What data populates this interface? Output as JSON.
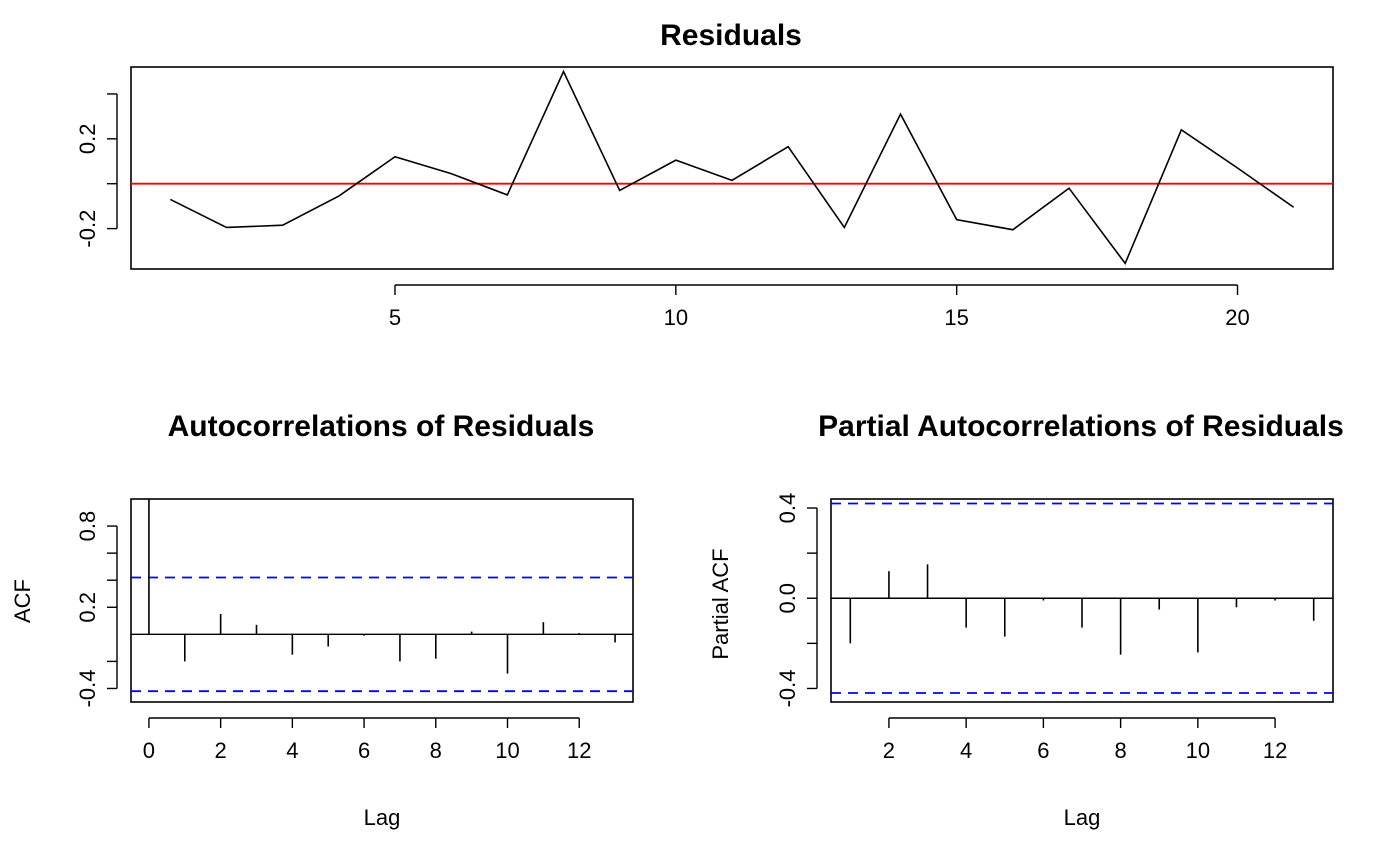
{
  "chart_data": [
    {
      "type": "line",
      "title": "Residuals",
      "xlabel": "",
      "ylabel": "",
      "x": [
        1,
        2,
        3,
        4,
        5,
        6,
        7,
        8,
        9,
        10,
        11,
        12,
        13,
        14,
        15,
        16,
        17,
        18,
        19,
        20,
        21
      ],
      "values": [
        -0.07,
        -0.195,
        -0.185,
        -0.055,
        0.12,
        0.045,
        -0.05,
        0.5,
        -0.03,
        0.105,
        0.015,
        0.165,
        -0.195,
        0.31,
        -0.16,
        -0.205,
        -0.02,
        -0.355,
        0.24,
        0.07,
        -0.105
      ],
      "ylim": [
        -0.38,
        0.52
      ],
      "xlim": [
        0.3,
        21.7
      ],
      "xticks": [
        5,
        10,
        15,
        20
      ],
      "yticks": [
        -0.2,
        0.2
      ],
      "yticks_unlabeled": [
        -0.4,
        0.0,
        0.4
      ],
      "ytick_labels": [
        "-0.2",
        "0.2"
      ],
      "reference_line": {
        "y": 0,
        "color": "#ff0000"
      },
      "grid": false
    },
    {
      "type": "bar",
      "title": "Autocorrelations of Residuals",
      "xlabel": "Lag",
      "ylabel": "ACF",
      "x": [
        0,
        1,
        2,
        3,
        4,
        5,
        6,
        7,
        8,
        9,
        10,
        11,
        12,
        13
      ],
      "values": [
        1.0,
        -0.2,
        0.15,
        0.07,
        -0.15,
        -0.09,
        -0.01,
        -0.2,
        -0.18,
        0.02,
        -0.29,
        0.09,
        0.01,
        -0.06
      ],
      "ylim": [
        -0.5,
        1.0
      ],
      "xlim": [
        -0.5,
        13.5
      ],
      "xticks": [
        0,
        2,
        4,
        6,
        8,
        10,
        12
      ],
      "yticks": [
        -0.4,
        0.2,
        0.8
      ],
      "yticks_unlabeled": [
        -0.2,
        0.4,
        0.6
      ],
      "ytick_labels": [
        "-0.4",
        "0.2",
        "0.8"
      ],
      "zero_line": true,
      "confidence_band": [
        -0.42,
        0.42
      ],
      "confidence_color": "#0000ff",
      "grid": false
    },
    {
      "type": "bar",
      "title": "Partial Autocorrelations of Residuals",
      "xlabel": "Lag",
      "ylabel": "Partial ACF",
      "x": [
        1,
        2,
        3,
        4,
        5,
        6,
        7,
        8,
        9,
        10,
        11,
        12,
        13
      ],
      "values": [
        -0.2,
        0.12,
        0.15,
        -0.13,
        -0.17,
        -0.01,
        -0.13,
        -0.25,
        -0.05,
        -0.24,
        -0.04,
        -0.01,
        -0.1
      ],
      "ylim": [
        -0.46,
        0.44
      ],
      "xlim": [
        0.5,
        13.5
      ],
      "xticks": [
        2,
        4,
        6,
        8,
        10,
        12
      ],
      "yticks": [
        -0.4,
        0.0,
        0.4
      ],
      "yticks_unlabeled": [
        -0.2,
        0.2
      ],
      "ytick_labels": [
        "-0.4",
        "0.0",
        "0.4"
      ],
      "zero_line": true,
      "confidence_band": [
        -0.42,
        0.42
      ],
      "confidence_color": "#0000ff",
      "grid": false
    }
  ]
}
